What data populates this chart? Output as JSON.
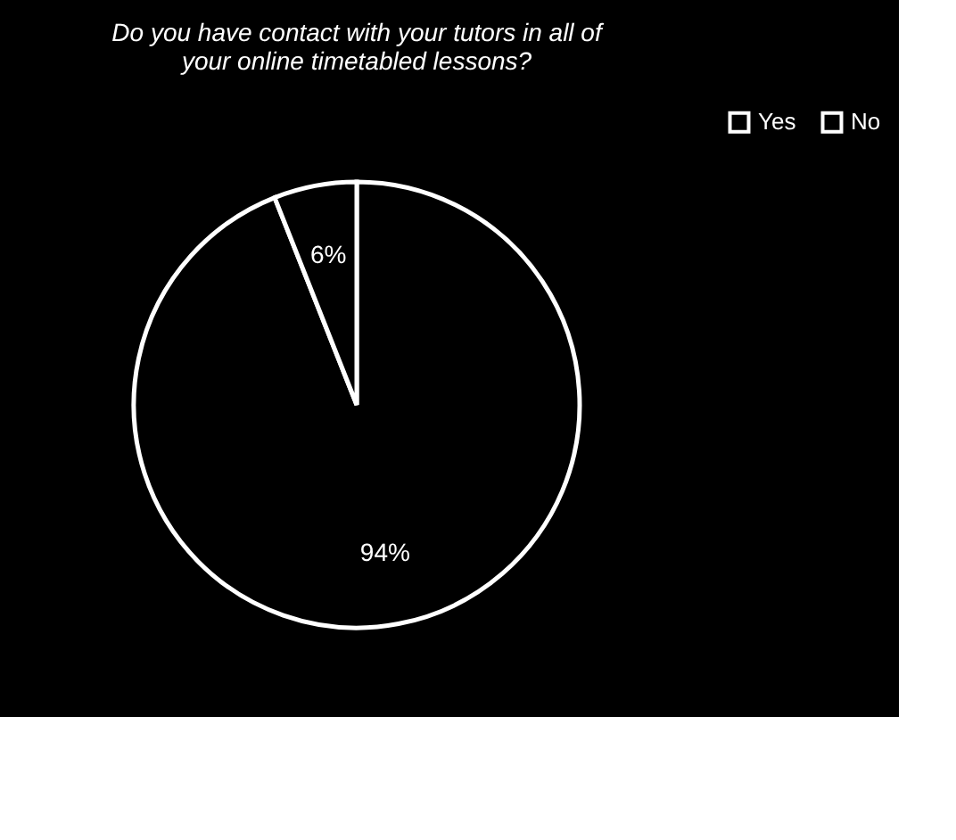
{
  "chart_data": {
    "type": "pie",
    "title": "Do you have contact with your tutors in all of your online timetabled lessons?",
    "categories": [
      "Yes",
      "No"
    ],
    "values": [
      94,
      6
    ],
    "value_labels": [
      "94%",
      "6%"
    ],
    "colors": [
      "#000000",
      "#000000"
    ],
    "legend": "right"
  }
}
